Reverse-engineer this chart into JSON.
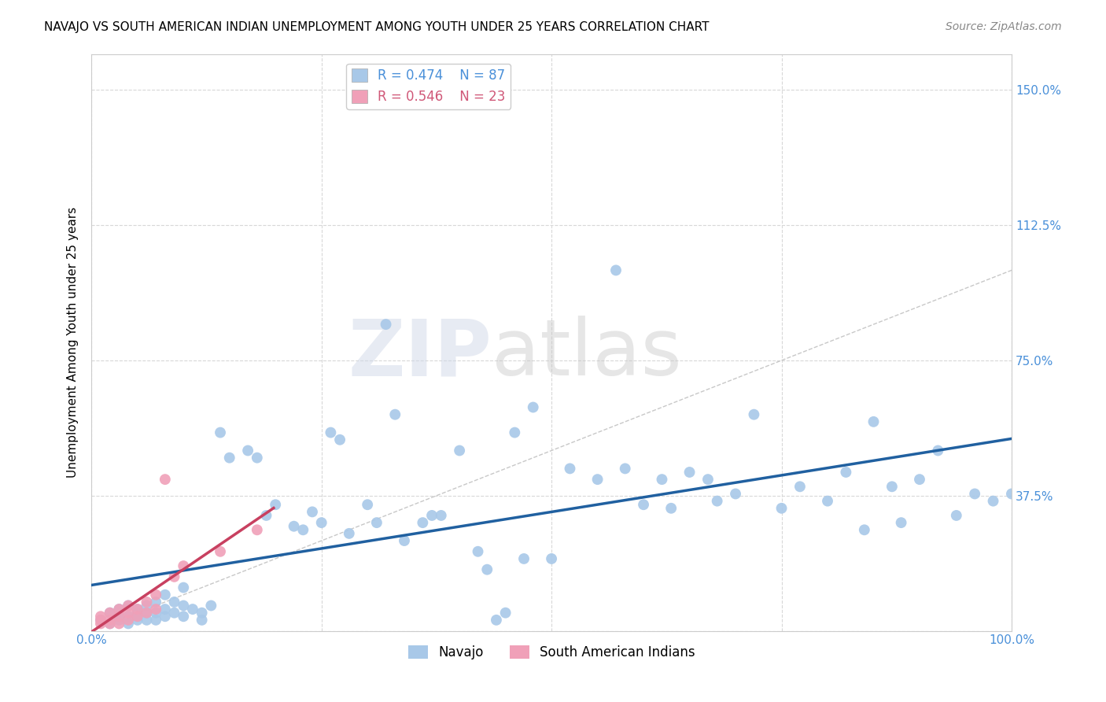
{
  "title": "NAVAJO VS SOUTH AMERICAN INDIAN UNEMPLOYMENT AMONG YOUTH UNDER 25 YEARS CORRELATION CHART",
  "source": "Source: ZipAtlas.com",
  "ylabel": "Unemployment Among Youth under 25 years",
  "navajo_R": 0.474,
  "navajo_N": 87,
  "sa_indian_R": 0.546,
  "sa_indian_N": 23,
  "navajo_color": "#a8c8e8",
  "navajo_line_color": "#2060a0",
  "sa_color": "#f0a0b8",
  "sa_line_color": "#c84060",
  "ref_line_color": "#c8c8c8",
  "watermark_zip": "ZIP",
  "watermark_atlas": "atlas",
  "xlim": [
    0.0,
    1.0
  ],
  "ylim": [
    0.0,
    1.6
  ],
  "yticks": [
    0.0,
    0.375,
    0.75,
    1.125,
    1.5
  ],
  "ytick_labels": [
    "",
    "37.5%",
    "75.0%",
    "112.5%",
    "150.0%"
  ],
  "xticks": [
    0.0,
    0.25,
    0.5,
    0.75,
    1.0
  ],
  "xtick_labels": [
    "0.0%",
    "",
    "",
    "",
    "100.0%"
  ],
  "navajo_x": [
    0.01,
    0.02,
    0.02,
    0.03,
    0.03,
    0.03,
    0.04,
    0.04,
    0.04,
    0.05,
    0.05,
    0.05,
    0.05,
    0.06,
    0.06,
    0.06,
    0.07,
    0.07,
    0.07,
    0.08,
    0.08,
    0.08,
    0.09,
    0.09,
    0.1,
    0.1,
    0.1,
    0.11,
    0.12,
    0.12,
    0.13,
    0.14,
    0.15,
    0.17,
    0.18,
    0.19,
    0.2,
    0.22,
    0.23,
    0.24,
    0.25,
    0.26,
    0.27,
    0.28,
    0.3,
    0.31,
    0.32,
    0.33,
    0.34,
    0.36,
    0.37,
    0.38,
    0.4,
    0.42,
    0.43,
    0.44,
    0.45,
    0.46,
    0.47,
    0.48,
    0.5,
    0.52,
    0.55,
    0.57,
    0.58,
    0.6,
    0.62,
    0.63,
    0.65,
    0.67,
    0.68,
    0.7,
    0.72,
    0.75,
    0.77,
    0.8,
    0.82,
    0.84,
    0.85,
    0.87,
    0.88,
    0.9,
    0.92,
    0.94,
    0.96,
    0.98,
    1.0
  ],
  "navajo_y": [
    0.03,
    0.05,
    0.02,
    0.04,
    0.03,
    0.06,
    0.02,
    0.04,
    0.07,
    0.03,
    0.05,
    0.04,
    0.06,
    0.03,
    0.05,
    0.07,
    0.03,
    0.05,
    0.08,
    0.04,
    0.06,
    0.1,
    0.05,
    0.08,
    0.04,
    0.07,
    0.12,
    0.06,
    0.05,
    0.03,
    0.07,
    0.55,
    0.48,
    0.5,
    0.48,
    0.32,
    0.35,
    0.29,
    0.28,
    0.33,
    0.3,
    0.55,
    0.53,
    0.27,
    0.35,
    0.3,
    0.85,
    0.6,
    0.25,
    0.3,
    0.32,
    0.32,
    0.5,
    0.22,
    0.17,
    0.03,
    0.05,
    0.55,
    0.2,
    0.62,
    0.2,
    0.45,
    0.42,
    1.0,
    0.45,
    0.35,
    0.42,
    0.34,
    0.44,
    0.42,
    0.36,
    0.38,
    0.6,
    0.34,
    0.4,
    0.36,
    0.44,
    0.28,
    0.58,
    0.4,
    0.3,
    0.42,
    0.5,
    0.32,
    0.38,
    0.36,
    0.38
  ],
  "sa_x": [
    0.01,
    0.01,
    0.01,
    0.02,
    0.02,
    0.02,
    0.03,
    0.03,
    0.03,
    0.04,
    0.04,
    0.04,
    0.05,
    0.05,
    0.06,
    0.06,
    0.07,
    0.07,
    0.08,
    0.09,
    0.1,
    0.14,
    0.18
  ],
  "sa_y": [
    0.02,
    0.03,
    0.04,
    0.02,
    0.03,
    0.05,
    0.02,
    0.04,
    0.06,
    0.03,
    0.05,
    0.07,
    0.04,
    0.06,
    0.05,
    0.08,
    0.06,
    0.1,
    0.42,
    0.15,
    0.18,
    0.22,
    0.28
  ],
  "background_color": "#ffffff",
  "grid_color": "#d8d8d8"
}
